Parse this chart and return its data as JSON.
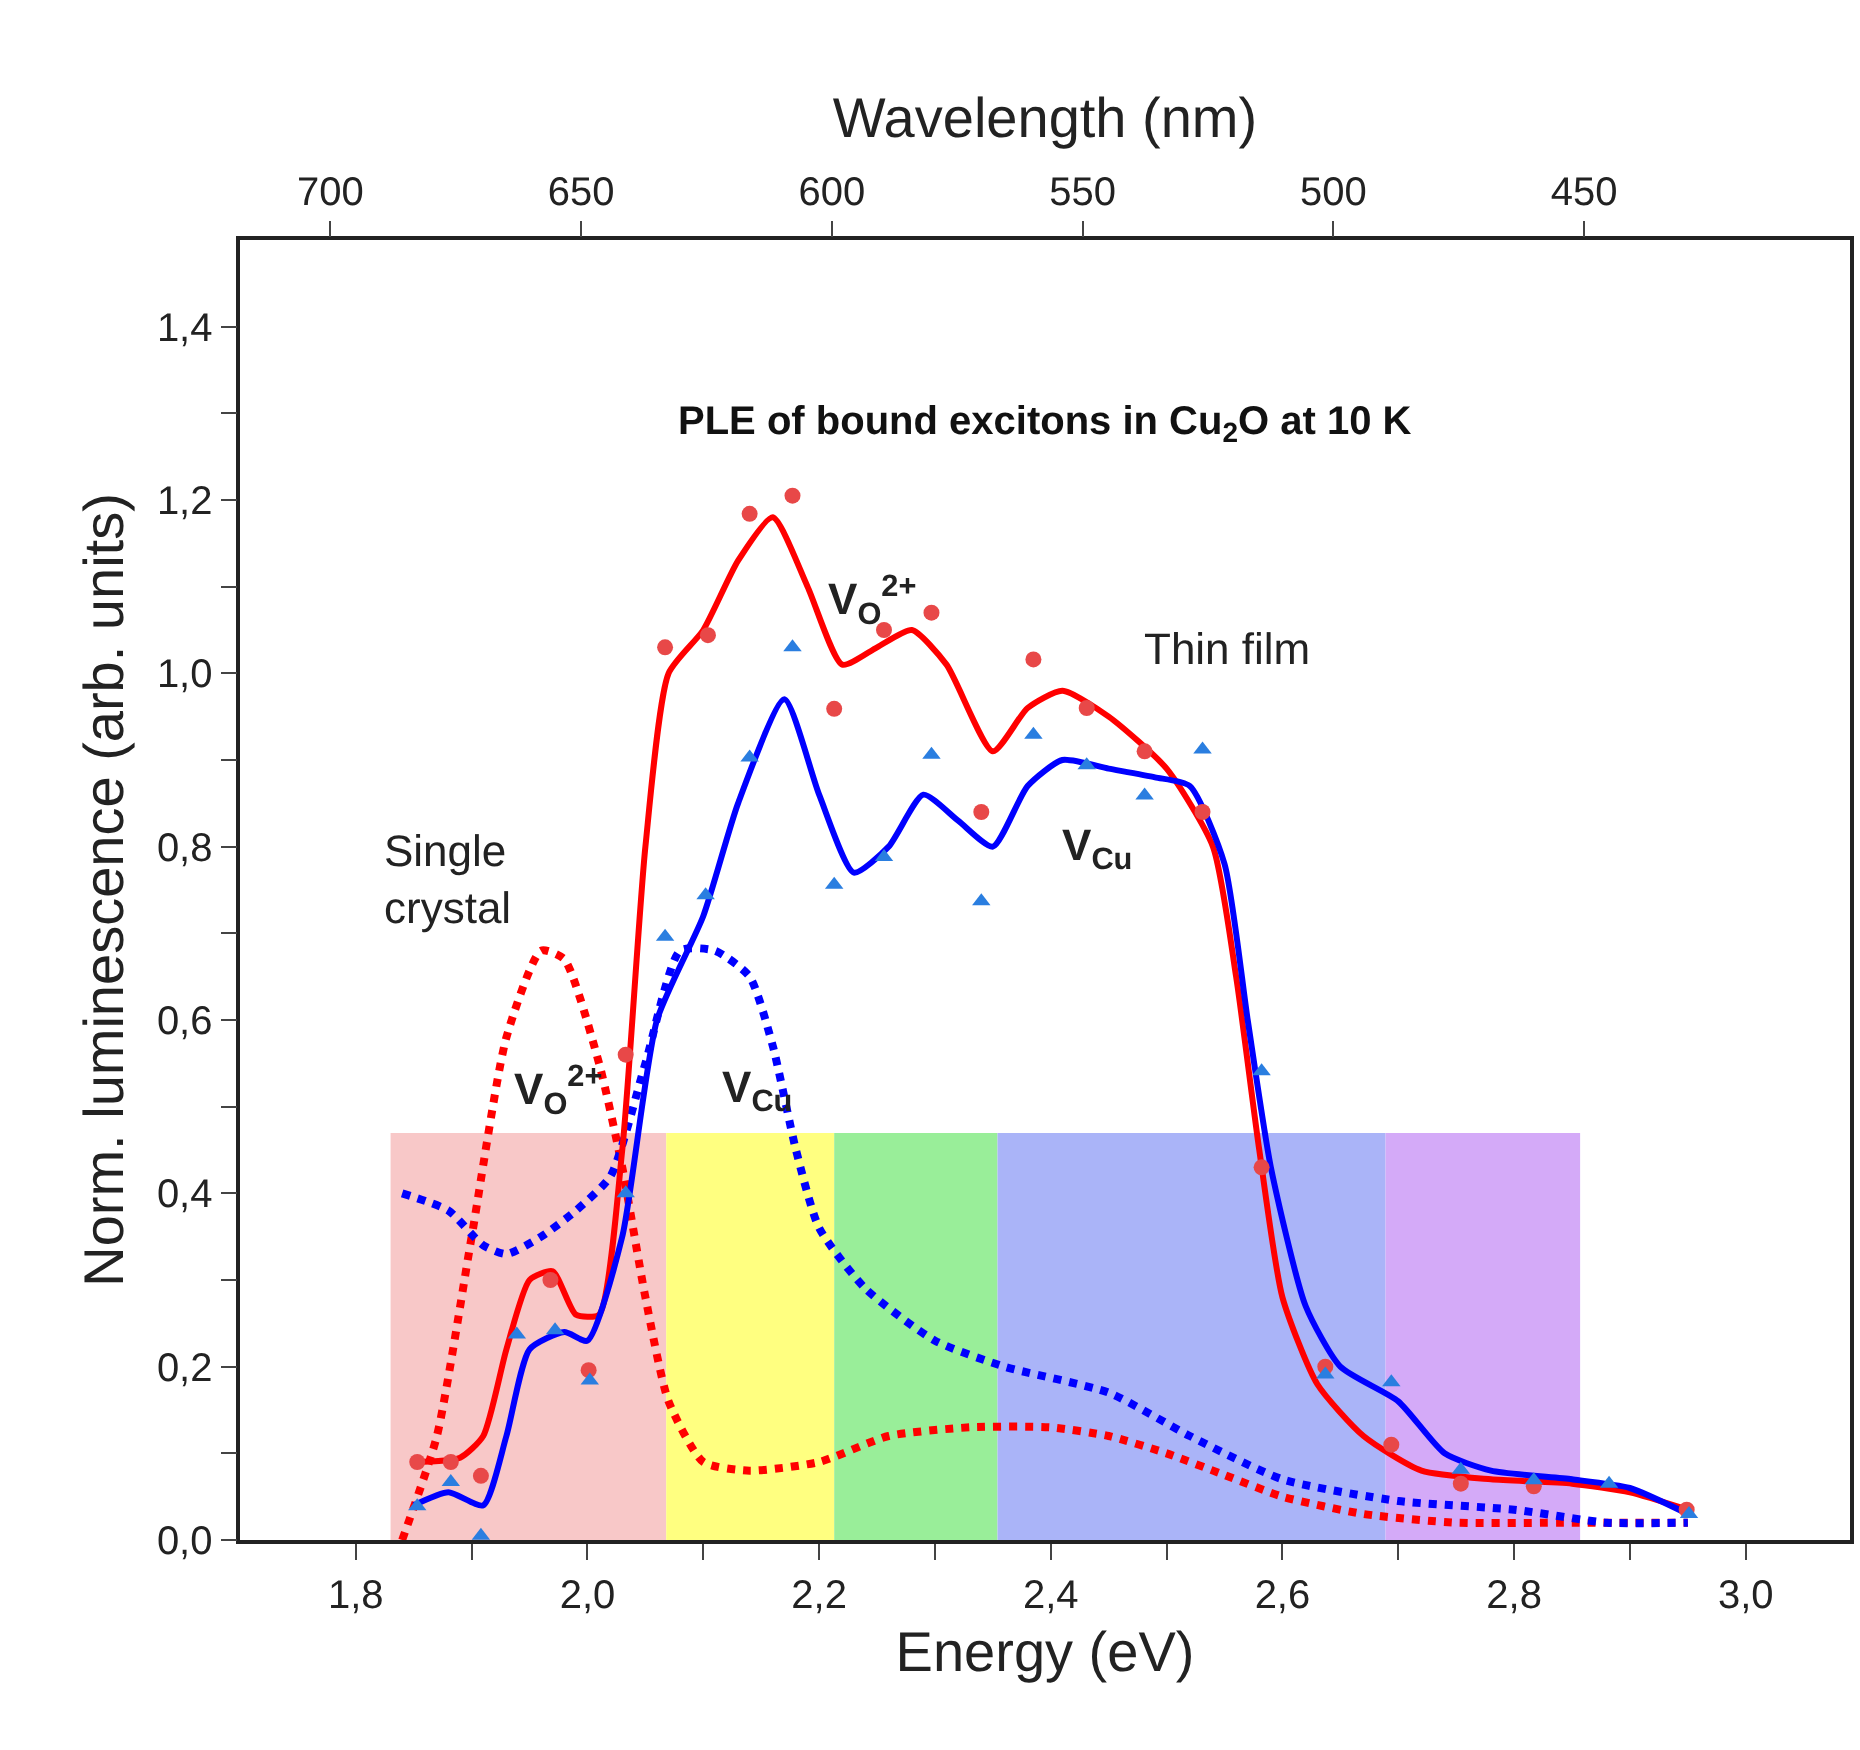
{
  "chart_data": {
    "type": "scatter",
    "title": "PLE of bound excitons in Cu$_{2}$O at 10 K",
    "xlabel": "Energy (eV)",
    "ylabel": "Norm. luminescence (arb. units)",
    "x2label": "Wavelength (nm)",
    "xlim": [
      1.7,
      3.09
    ],
    "ylim": [
      0,
      1.5
    ],
    "xticks": [
      {
        "value": 1.8,
        "label": "1,8"
      },
      {
        "value": 1.9,
        "label": null
      },
      {
        "value": 2.0,
        "label": "2,0"
      },
      {
        "value": 2.1,
        "label": null
      },
      {
        "value": 2.2,
        "label": "2,2"
      },
      {
        "value": 2.3,
        "label": null
      },
      {
        "value": 2.4,
        "label": "2,4"
      },
      {
        "value": 2.5,
        "label": null
      },
      {
        "value": 2.6,
        "label": "2,6"
      },
      {
        "value": 2.7,
        "label": null
      },
      {
        "value": 2.8,
        "label": "2,8"
      },
      {
        "value": 2.9,
        "label": null
      },
      {
        "value": 3.0,
        "label": "3,0"
      }
    ],
    "yticks": [
      {
        "value": 0.0,
        "label": "0,0"
      },
      {
        "value": 0.1,
        "label": null
      },
      {
        "value": 0.2,
        "label": "0,2"
      },
      {
        "value": 0.3,
        "label": null
      },
      {
        "value": 0.4,
        "label": "0,4"
      },
      {
        "value": 0.5,
        "label": null
      },
      {
        "value": 0.6,
        "label": "0,6"
      },
      {
        "value": 0.7,
        "label": null
      },
      {
        "value": 0.8,
        "label": "0,8"
      },
      {
        "value": 0.9,
        "label": null
      },
      {
        "value": 1.0,
        "label": "1,0"
      },
      {
        "value": 1.1,
        "label": null
      },
      {
        "value": 1.2,
        "label": "1,2"
      },
      {
        "value": 1.3,
        "label": null
      },
      {
        "value": 1.4,
        "label": "1,4"
      }
    ],
    "x2lim": [
      718,
      397
    ],
    "x2ticks": [
      700,
      650,
      600,
      550,
      500,
      450
    ],
    "grid": false,
    "bands": [
      {
        "axis": "x",
        "from": 1.83,
        "to": 2.068,
        "color": "#f8c8c8"
      },
      {
        "axis": "x",
        "from": 2.068,
        "to": 2.213,
        "color": "#ffff80"
      },
      {
        "axis": "x",
        "from": 2.213,
        "to": 2.354,
        "color": "#99ee99"
      },
      {
        "axis": "x",
        "from": 2.354,
        "to": 2.689,
        "color": "#aab4f8"
      },
      {
        "axis": "x",
        "from": 2.689,
        "to": 2.857,
        "color": "#d4aaf8"
      }
    ],
    "series": [
      {
        "type": "line",
        "color": "#ff0000",
        "line_style": "dotted",
        "marker": "none",
        "x": [
          1.84,
          1.87,
          1.9,
          1.93,
          1.96,
          1.98,
          2.01,
          2.03,
          2.05,
          2.07,
          2.1,
          2.14,
          2.2,
          2.26,
          2.33,
          2.4,
          2.45,
          2.5,
          2.55,
          2.6,
          2.67,
          2.75,
          2.85,
          2.95
        ],
        "values": [
          0.0,
          0.12,
          0.35,
          0.58,
          0.68,
          0.67,
          0.55,
          0.43,
          0.28,
          0.16,
          0.09,
          0.08,
          0.09,
          0.12,
          0.13,
          0.13,
          0.12,
          0.1,
          0.075,
          0.05,
          0.03,
          0.02,
          0.02,
          0.02
        ]
      },
      {
        "type": "line",
        "color": "#0000ff",
        "line_style": "dotted",
        "marker": "none",
        "x": [
          1.84,
          1.88,
          1.91,
          1.93,
          1.96,
          1.99,
          2.02,
          2.05,
          2.08,
          2.11,
          2.14,
          2.16,
          2.18,
          2.2,
          2.24,
          2.3,
          2.36,
          2.45,
          2.52,
          2.6,
          2.7,
          2.8,
          2.88,
          2.95
        ],
        "values": [
          0.4,
          0.38,
          0.34,
          0.33,
          0.35,
          0.38,
          0.42,
          0.55,
          0.68,
          0.68,
          0.65,
          0.57,
          0.45,
          0.36,
          0.29,
          0.23,
          0.2,
          0.17,
          0.12,
          0.07,
          0.045,
          0.035,
          0.02,
          0.02
        ]
      },
      {
        "color": "#e84848",
        "marker": "circle",
        "x": [
          1.853,
          1.882,
          1.908,
          1.968,
          2.001,
          2.033,
          2.067,
          2.104,
          2.14,
          2.177,
          2.213,
          2.256,
          2.297,
          2.34,
          2.385,
          2.431,
          2.481,
          2.531,
          2.582,
          2.637,
          2.694,
          2.754,
          2.817,
          2.949
        ],
        "values": [
          0.09,
          0.09,
          0.074,
          0.3,
          0.196,
          0.56,
          1.03,
          1.044,
          1.184,
          1.205,
          0.959,
          1.05,
          1.07,
          0.84,
          1.016,
          0.96,
          0.91,
          0.84,
          0.43,
          0.2,
          0.11,
          0.065,
          0.062,
          0.035
        ]
      },
      {
        "color": "#2a7ee0",
        "marker": "triangle",
        "x": [
          1.853,
          1.882,
          1.908,
          1.939,
          1.972,
          2.002,
          2.033,
          2.067,
          2.102,
          2.14,
          2.177,
          2.213,
          2.256,
          2.297,
          2.34,
          2.385,
          2.431,
          2.481,
          2.531,
          2.582,
          2.637,
          2.694,
          2.754,
          2.817,
          2.882,
          2.951
        ],
        "values": [
          0.039,
          0.067,
          0.005,
          0.237,
          0.242,
          0.184,
          0.4,
          0.696,
          0.744,
          0.903,
          1.03,
          0.756,
          0.788,
          0.906,
          0.737,
          0.929,
          0.894,
          0.859,
          0.912,
          0.541,
          0.191,
          0.182,
          0.081,
          0.069,
          0.065,
          0.03
        ]
      },
      {
        "type": "line",
        "color": "#ff0000",
        "line_style": "solid",
        "marker": "none",
        "x": [
          1.85,
          1.89,
          1.91,
          1.93,
          1.95,
          1.97,
          1.99,
          2.01,
          2.03,
          2.05,
          2.07,
          2.1,
          2.13,
          2.16,
          2.19,
          2.22,
          2.25,
          2.28,
          2.31,
          2.35,
          2.38,
          2.41,
          2.45,
          2.5,
          2.54,
          2.56,
          2.58,
          2.6,
          2.63,
          2.67,
          2.72,
          2.78,
          2.85,
          2.9,
          2.95
        ],
        "values": [
          0.09,
          0.095,
          0.12,
          0.22,
          0.3,
          0.31,
          0.26,
          0.26,
          0.45,
          0.8,
          1.0,
          1.05,
          1.13,
          1.18,
          1.1,
          1.01,
          1.03,
          1.05,
          1.01,
          0.91,
          0.96,
          0.98,
          0.95,
          0.89,
          0.8,
          0.65,
          0.45,
          0.28,
          0.18,
          0.12,
          0.08,
          0.07,
          0.065,
          0.055,
          0.035
        ]
      },
      {
        "type": "line",
        "color": "#0000ff",
        "line_style": "solid",
        "marker": "none",
        "x": [
          1.85,
          1.88,
          1.91,
          1.93,
          1.95,
          1.98,
          2.0,
          2.03,
          2.06,
          2.1,
          2.13,
          2.17,
          2.2,
          2.23,
          2.26,
          2.29,
          2.32,
          2.35,
          2.38,
          2.41,
          2.45,
          2.49,
          2.52,
          2.55,
          2.57,
          2.59,
          2.62,
          2.65,
          2.7,
          2.74,
          2.78,
          2.85,
          2.9,
          2.95
        ],
        "values": [
          0.04,
          0.055,
          0.04,
          0.12,
          0.22,
          0.24,
          0.23,
          0.35,
          0.6,
          0.72,
          0.85,
          0.97,
          0.86,
          0.77,
          0.8,
          0.86,
          0.83,
          0.8,
          0.87,
          0.9,
          0.89,
          0.88,
          0.87,
          0.78,
          0.6,
          0.43,
          0.27,
          0.2,
          0.16,
          0.1,
          0.08,
          0.07,
          0.06,
          0.03
        ]
      }
    ],
    "annotations": [
      "V$_{O}$$^{2+}$",
      "Thin film",
      "V$_{Cu}$",
      "Single crystal",
      "V$_{O}$$^{2+}$",
      "V$_{Cu}$"
    ]
  }
}
